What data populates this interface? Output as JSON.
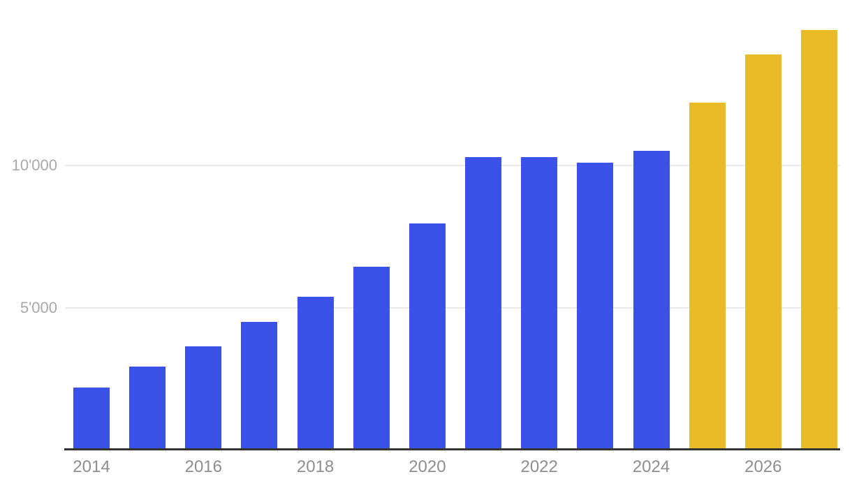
{
  "chart_data": {
    "type": "bar",
    "title": "",
    "xlabel": "",
    "ylabel": "",
    "categories": [
      "2014",
      "2015",
      "2016",
      "2017",
      "2018",
      "2019",
      "2020",
      "2021",
      "2022",
      "2023",
      "2024",
      "2025",
      "2026",
      "2027"
    ],
    "values": [
      2200,
      2950,
      3650,
      4500,
      5400,
      6450,
      7950,
      10300,
      10300,
      10100,
      10500,
      12200,
      13900,
      14750
    ],
    "segments": [
      "actual",
      "actual",
      "actual",
      "actual",
      "actual",
      "actual",
      "actual",
      "actual",
      "actual",
      "actual",
      "actual",
      "forecast",
      "forecast",
      "forecast"
    ],
    "series_colors": {
      "actual": "#3B52E9",
      "forecast": "#E9BC27"
    },
    "ylim": [
      0,
      15800
    ],
    "yticks": [
      {
        "value": 5000,
        "label": "5'000"
      },
      {
        "value": 10000,
        "label": "10'000"
      }
    ],
    "xtick_labels": [
      "2014",
      "2016",
      "2018",
      "2020",
      "2022",
      "2024",
      "2026"
    ],
    "grid": "horizontal",
    "legend": "none"
  },
  "style": {
    "background": "#FFFFFF",
    "grid_color": "#EAEAEA",
    "axis_color": "#333333",
    "xtick_color": "#8E8E8E",
    "ytick_color": "#A9A9A9"
  }
}
